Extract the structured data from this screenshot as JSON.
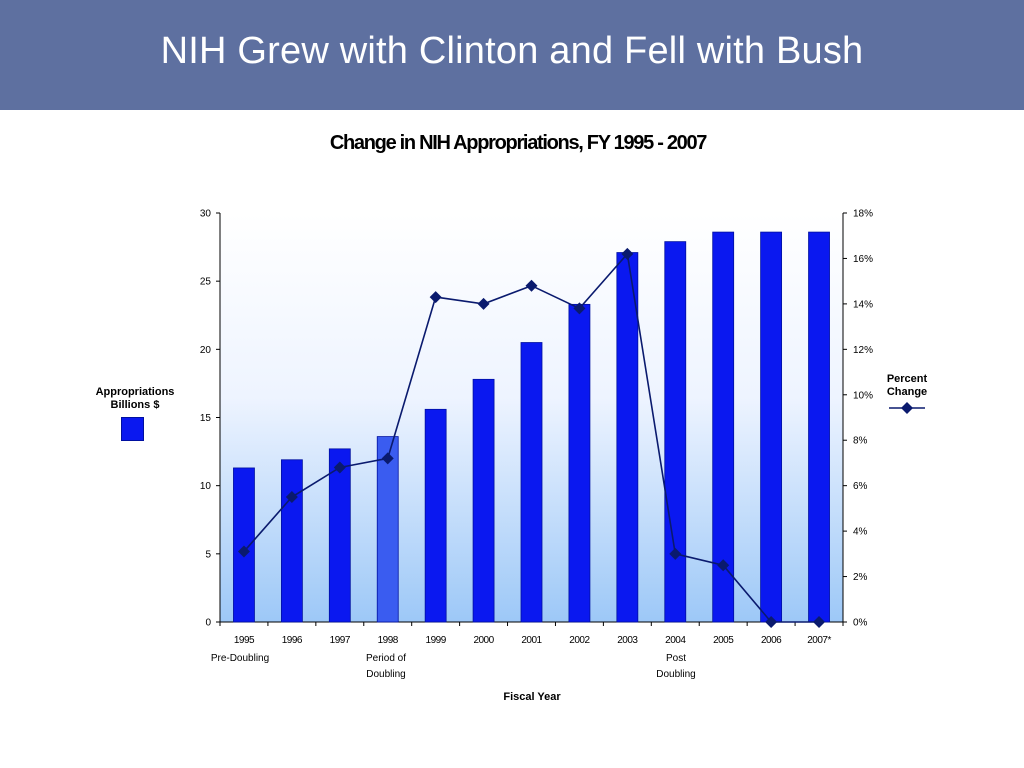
{
  "slide": {
    "title": "NIH Grew with Clinton and Fell with Bush"
  },
  "chart_data": {
    "type": "bar",
    "title": "Change in NIH Appropriations, FY 1995 - 2007",
    "xlabel": "Fiscal Year",
    "categories": [
      "1995",
      "1996",
      "1997",
      "1998",
      "1999",
      "2000",
      "2001",
      "2002",
      "2003",
      "2004",
      "2005",
      "2006",
      "2007*"
    ],
    "category_sublabels": {
      "pre": "Pre-Doubling",
      "period": "Period of\nDoubling",
      "post": "Post\nDoubling"
    },
    "series": [
      {
        "name": "Appropriations Billions $",
        "kind": "bar",
        "axis": "left",
        "values": [
          11.3,
          11.9,
          12.7,
          13.6,
          15.6,
          17.8,
          20.5,
          23.3,
          27.1,
          27.9,
          28.6,
          28.6,
          28.6
        ],
        "color": "#0a18f0",
        "highlight_color": "#3a5cf0",
        "highlight_category": "1998"
      },
      {
        "name": "Percent Change",
        "kind": "line",
        "axis": "right",
        "values": [
          3.1,
          5.5,
          6.8,
          7.2,
          14.3,
          14.0,
          14.8,
          13.8,
          16.2,
          3.0,
          2.5,
          0.0,
          0.0
        ],
        "color": "#0a1a6e"
      }
    ],
    "y_left": {
      "ylim": [
        0,
        30
      ],
      "ticks": [
        0,
        5,
        10,
        15,
        20,
        25,
        30
      ]
    },
    "y_right": {
      "ylim": [
        0,
        18
      ],
      "ticks": [
        "0%",
        "2%",
        "4%",
        "6%",
        "8%",
        "10%",
        "12%",
        "14%",
        "16%",
        "18%"
      ]
    },
    "legend": {
      "left_label": "Appropriations\nBillions $",
      "right_label": "Percent\nChange"
    }
  }
}
